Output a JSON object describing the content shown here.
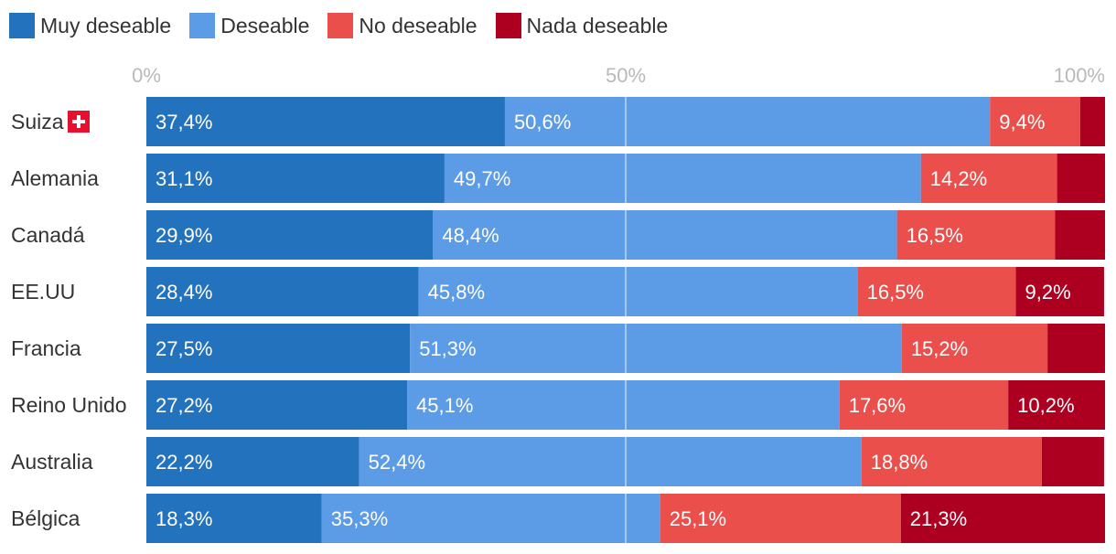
{
  "chart_data": {
    "type": "bar",
    "orientation": "horizontal",
    "stacked": true,
    "xlim": [
      0,
      100
    ],
    "ticks": [
      {
        "value": 0,
        "label": "0%"
      },
      {
        "value": 50,
        "label": "50%"
      },
      {
        "value": 100,
        "label": "100%"
      }
    ],
    "categories": [
      "Suiza",
      "Alemania",
      "Canadá",
      "EE.UU",
      "Francia",
      "Reino Unido",
      "Australia",
      "Bélgica"
    ],
    "flag_category": "Suiza",
    "series": [
      {
        "name": "Muy deseable",
        "color": "#2372be",
        "values": [
          37.4,
          31.1,
          29.9,
          28.4,
          27.5,
          27.2,
          22.2,
          18.3
        ],
        "labels": [
          "37,4%",
          "31,1%",
          "29,9%",
          "28,4%",
          "27,5%",
          "27,2%",
          "22,2%",
          "18,3%"
        ]
      },
      {
        "name": "Deseable",
        "color": "#5c9be6",
        "values": [
          50.6,
          49.7,
          48.4,
          45.8,
          51.3,
          45.1,
          52.4,
          35.3
        ],
        "labels": [
          "50,6%",
          "49,7%",
          "48,4%",
          "45,8%",
          "51,3%",
          "45,1%",
          "52,4%",
          "35,3%"
        ]
      },
      {
        "name": "No deseable",
        "color": "#ea4f4b",
        "values": [
          9.4,
          14.2,
          16.5,
          16.5,
          15.2,
          17.6,
          18.8,
          25.1
        ],
        "labels": [
          "9,4%",
          "14,2%",
          "16,5%",
          "16,5%",
          "15,2%",
          "17,6%",
          "18,8%",
          "25,1%"
        ]
      },
      {
        "name": "Nada deseable",
        "color": "#ad0021",
        "values": [
          2.6,
          5.0,
          5.2,
          9.2,
          6.0,
          10.2,
          6.5,
          21.3
        ],
        "labels": [
          null,
          null,
          null,
          "9,2%",
          null,
          "10,2%",
          null,
          "21,3%"
        ]
      }
    ]
  }
}
